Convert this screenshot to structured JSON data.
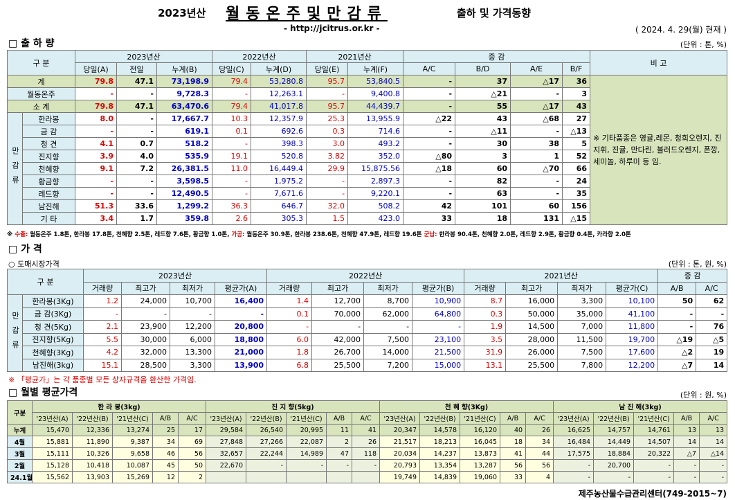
{
  "header": {
    "year": "2023년산",
    "title": "월동온주및만감류",
    "subtitle": "출하 및 가격동향",
    "url": "- http://jcitrus.or.kr -",
    "date": "( 2024. 4. 29(월) 현재 )"
  },
  "shipment": {
    "section": "□ 출 하 량",
    "unit": "(단위 : 톤, %)",
    "corner": "구 분",
    "groups": [
      "2023년산",
      "2022년산",
      "2021년산",
      "증 감"
    ],
    "remark_head": "비 고",
    "sub": [
      "당일(A)",
      "전일",
      "누계(B)",
      "당일(C)",
      "누계(D)",
      "당일(E)",
      "누계(F)",
      "A/C",
      "B/D",
      "A/E",
      "B/F"
    ],
    "rows": [
      {
        "label": "계",
        "values": [
          "79.8",
          "47.1",
          "73,198.9",
          "79.4",
          "53,280.8",
          "95.7",
          "53,840.5",
          "-",
          "37",
          "△17",
          "36"
        ]
      },
      {
        "label": "월동온주",
        "values": [
          "-",
          "-",
          "9,728.3",
          "-",
          "12,263.1",
          "-",
          "9,400.8",
          "-",
          "△21",
          "-",
          "3"
        ]
      },
      {
        "label": "소 계",
        "values": [
          "79.8",
          "47.1",
          "63,470.6",
          "79.4",
          "41,017.8",
          "95.7",
          "44,439.7",
          "-",
          "55",
          "△17",
          "43"
        ]
      }
    ],
    "group": {
      "label": "만감류",
      "rows": [
        {
          "label": "한라봉",
          "values": [
            "8.0",
            "-",
            "17,667.7",
            "10.3",
            "12,357.9",
            "25.3",
            "13,955.9",
            "△22",
            "43",
            "△68",
            "27"
          ]
        },
        {
          "label": "금 감",
          "values": [
            "-",
            "-",
            "619.1",
            "0.1",
            "692.6",
            "0.3",
            "714.6",
            "-",
            "△11",
            "-",
            "△13"
          ]
        },
        {
          "label": "청 견",
          "values": [
            "4.1",
            "0.7",
            "518.2",
            "-",
            "398.3",
            "3.0",
            "493.2",
            "-",
            "30",
            "38",
            "5"
          ]
        },
        {
          "label": "진지향",
          "values": [
            "3.9",
            "4.0",
            "535.9",
            "19.1",
            "520.8",
            "3.82",
            "352.0",
            "△80",
            "3",
            "1",
            "52"
          ]
        },
        {
          "label": "천혜향",
          "values": [
            "9.1",
            "7.2",
            "26,381.5",
            "11.0",
            "16,449.4",
            "29.9",
            "15,875.56",
            "△18",
            "60",
            "△70",
            "66"
          ]
        },
        {
          "label": "황금향",
          "values": [
            "-",
            "-",
            "3,598.5",
            "-",
            "1,975.2",
            "-",
            "2,897.3",
            "-",
            "82",
            "-",
            "24"
          ]
        },
        {
          "label": "레드향",
          "values": [
            "-",
            "-",
            "12,490.5",
            "-",
            "7,671.6",
            "-",
            "9,220.1",
            "-",
            "63",
            "-",
            "35"
          ]
        },
        {
          "label": "남진해",
          "values": [
            "51.3",
            "33.6",
            "1,299.2",
            "36.3",
            "646.7",
            "32.0",
            "508.2",
            "42",
            "101",
            "60",
            "156"
          ]
        },
        {
          "label": "기 타",
          "values": [
            "3.4",
            "1.7",
            "359.8",
            "2.6",
            "305.3",
            "1.5",
            "423.0",
            "33",
            "18",
            "131",
            "△15"
          ]
        }
      ]
    },
    "remark": "※ 기타품종은 영귤,레몬, 청희오렌지, 진지휘, 진귤, 만다린, 블러드오렌지, 폰깡,세미놀, 하루미 등 임.",
    "footnote": [
      {
        "text": "※ ",
        "color": "#000000"
      },
      {
        "text": "수출:",
        "color": "#e00000"
      },
      {
        "text": " 월동온주 1.8톤, 한라봉 17.8톤, 천혜향 2.5톤, 레드향 7.6톤, 황금향 1.0톤, ",
        "color": "#000000"
      },
      {
        "text": "가공:",
        "color": "#e00000"
      },
      {
        "text": " 월동온주 30.9톤, 한라봉 238.6톤, 천혜향 47.9톤, 레드향 19.6톤 ",
        "color": "#000000"
      },
      {
        "text": "군납:",
        "color": "#e00000"
      },
      {
        "text": " 한라봉 90.4톤, 천혜향 2.0톤, 레드향 2.9톤, 황금향 0.4톤, 카라향 2.0톤",
        "color": "#000000"
      }
    ]
  },
  "prices": {
    "section": "□ 가 격",
    "subsection": "○ 도매시장가격",
    "unit": "(단위 : 톤, 원, %)",
    "corner": "구 분",
    "groups": [
      "2023년산",
      "2022년산",
      "2021년산",
      "증 감"
    ],
    "sub": [
      "거래량",
      "최고가",
      "최저가",
      "평균가(A)",
      "거래량",
      "최고가",
      "최저가",
      "평균가(B)",
      "거래량",
      "최고가",
      "최저가",
      "평균가(C)",
      "A/B",
      "A/C"
    ],
    "group_label": "만감류",
    "rows": [
      {
        "label": "한라봉(3Kg)",
        "values": [
          "1.2",
          "24,000",
          "10,700",
          "16,400",
          "1.4",
          "12,700",
          "8,700",
          "10,900",
          "8.7",
          "16,000",
          "3,300",
          "10,100",
          "50",
          "62"
        ]
      },
      {
        "label": "금 감(3Kg)",
        "values": [
          "-",
          "-",
          "-",
          "-",
          "0.1",
          "70,000",
          "62,000",
          "64,800",
          "0.3",
          "50,000",
          "35,000",
          "41,100",
          "-",
          "-"
        ]
      },
      {
        "label": "청 견(5Kg)",
        "values": [
          "2.1",
          "23,900",
          "12,200",
          "20,800",
          "-",
          "-",
          "-",
          "-",
          "1.9",
          "14,500",
          "7,000",
          "11,800",
          "-",
          "76"
        ]
      },
      {
        "label": "진지향(5Kg)",
        "values": [
          "5.5",
          "30,000",
          "6,000",
          "18,800",
          "6.0",
          "42,000",
          "7,500",
          "23,100",
          "3.5",
          "28,000",
          "11,500",
          "19,700",
          "△19",
          "△5"
        ]
      },
      {
        "label": "천혜향(3Kg)",
        "values": [
          "4.2",
          "32,000",
          "13,300",
          "21,000",
          "1.8",
          "26,700",
          "14,000",
          "21,500",
          "31.9",
          "26,000",
          "7,500",
          "17,600",
          "△2",
          "19"
        ]
      },
      {
        "label": "남진해(3kg)",
        "values": [
          "15.1",
          "28,500",
          "3,300",
          "13,900",
          "6.8",
          "25,500",
          "7,200",
          "15,000",
          "13.1",
          "25,500",
          "7,800",
          "12,200",
          "△7",
          "14"
        ]
      }
    ],
    "note": "※ 「평균가」는 각 품종별 모든 상자규격을 환산한 가격임."
  },
  "monthly": {
    "section": "□ 월별 평균가격",
    "unit": "(단위 : 원, %)",
    "corner": "구분",
    "groups": [
      "한 라 봉(3kg)",
      "진 지 향(5kg)",
      "천 혜 향(3Kg)",
      "남 진 해(3kg)"
    ],
    "sub": [
      "'23년산(A)",
      "'22년산(B)",
      "'21년산(C)",
      "A/B",
      "A/C"
    ],
    "rows": [
      {
        "label": "누계",
        "values": [
          "15,470",
          "12,336",
          "13,274",
          "25",
          "17",
          "29,584",
          "26,540",
          "20,995",
          "11",
          "41",
          "20,347",
          "14,578",
          "16,120",
          "40",
          "26",
          "16,625",
          "14,757",
          "14,761",
          "13",
          "13"
        ]
      },
      {
        "label": "4월",
        "values": [
          "15,881",
          "11,890",
          "9,387",
          "34",
          "69",
          "27,848",
          "27,266",
          "22,087",
          "2",
          "26",
          "21,517",
          "18,213",
          "16,045",
          "18",
          "34",
          "16,484",
          "14,449",
          "14,507",
          "14",
          "14"
        ]
      },
      {
        "label": "3월",
        "values": [
          "15,111",
          "10,326",
          "9,658",
          "46",
          "56",
          "32,657",
          "22,244",
          "14,989",
          "47",
          "118",
          "20,034",
          "14,237",
          "13,873",
          "41",
          "44",
          "17,575",
          "18,884",
          "20,322",
          "△7",
          "△14"
        ]
      },
      {
        "label": "2월",
        "values": [
          "15,128",
          "10,418",
          "10,087",
          "45",
          "50",
          "22,670",
          "-",
          "-",
          "-",
          "-",
          "20,793",
          "13,354",
          "13,287",
          "56",
          "56",
          "-",
          "20,700",
          "-",
          "-",
          "-"
        ]
      },
      {
        "label": "24.1월",
        "values": [
          "15,562",
          "13,903",
          "15,269",
          "12",
          "2",
          null,
          null,
          null,
          null,
          null,
          "19,749",
          "14,839",
          "19,060",
          "33",
          "4",
          "-",
          "-",
          "-",
          "-",
          "-"
        ]
      }
    ]
  },
  "footer": "제주농산물수급관리센터(749-2015~7)"
}
